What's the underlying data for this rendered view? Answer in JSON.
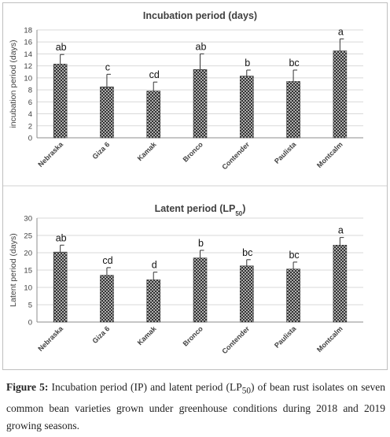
{
  "chart_data": [
    {
      "type": "bar",
      "title": "Incubation period (days)",
      "ylabel": "incubation period (days)",
      "xlabel": "",
      "categories": [
        "Nebraska",
        "Giza 6",
        "Kamak",
        "Bronco",
        "Contender",
        "Paulista",
        "Montcalm"
      ],
      "values": [
        12.3,
        8.5,
        7.8,
        11.4,
        10.3,
        9.4,
        14.5
      ],
      "errors": [
        1.6,
        2.1,
        1.5,
        2.6,
        1.0,
        1.9,
        2.0
      ],
      "letters": [
        "ab",
        "c",
        "cd",
        "ab",
        "b",
        "bc",
        "a"
      ],
      "ylim": [
        0,
        18
      ],
      "yticks": [
        "0",
        "2",
        "4",
        "6",
        "8",
        "10",
        "12",
        "14",
        "16",
        "18"
      ],
      "grid": true,
      "bar_pattern": "crosshatch"
    },
    {
      "type": "bar",
      "title": "Latent period (LP",
      "title_sub": "50",
      "title_end": ")",
      "ylabel": "Latent period (days)",
      "xlabel": "",
      "categories": [
        "Nebraska",
        "Giza 6",
        "Kamak",
        "Bronco",
        "Contender",
        "Paulista",
        "Montcalm"
      ],
      "values": [
        20.2,
        13.5,
        12.2,
        18.5,
        16.2,
        15.3,
        22.2
      ],
      "errors": [
        2.0,
        2.2,
        2.2,
        2.2,
        1.8,
        2.0,
        2.2
      ],
      "letters": [
        "ab",
        "cd",
        "d",
        "b",
        "bc",
        "bc",
        "a"
      ],
      "ylim": [
        0,
        30
      ],
      "yticks": [
        "0",
        "5",
        "10",
        "15",
        "20",
        "25",
        "30"
      ],
      "grid": true,
      "bar_pattern": "crosshatch"
    }
  ],
  "caption": {
    "label": "Figure 5:",
    "text_a": " Incubation period (IP) and latent period (LP",
    "sub": "50",
    "text_b": ") of bean rust isolates on seven common bean varieties grown under greenhouse conditions during 2018 and 2019 growing seasons."
  },
  "colors": {
    "bar_fill": "#3a3a3a",
    "bar_bg": "#ffffff",
    "grid": "#d9d9d9",
    "axis": "#8c8c8c",
    "text": "#404040",
    "frame": "#bfbfbf"
  }
}
